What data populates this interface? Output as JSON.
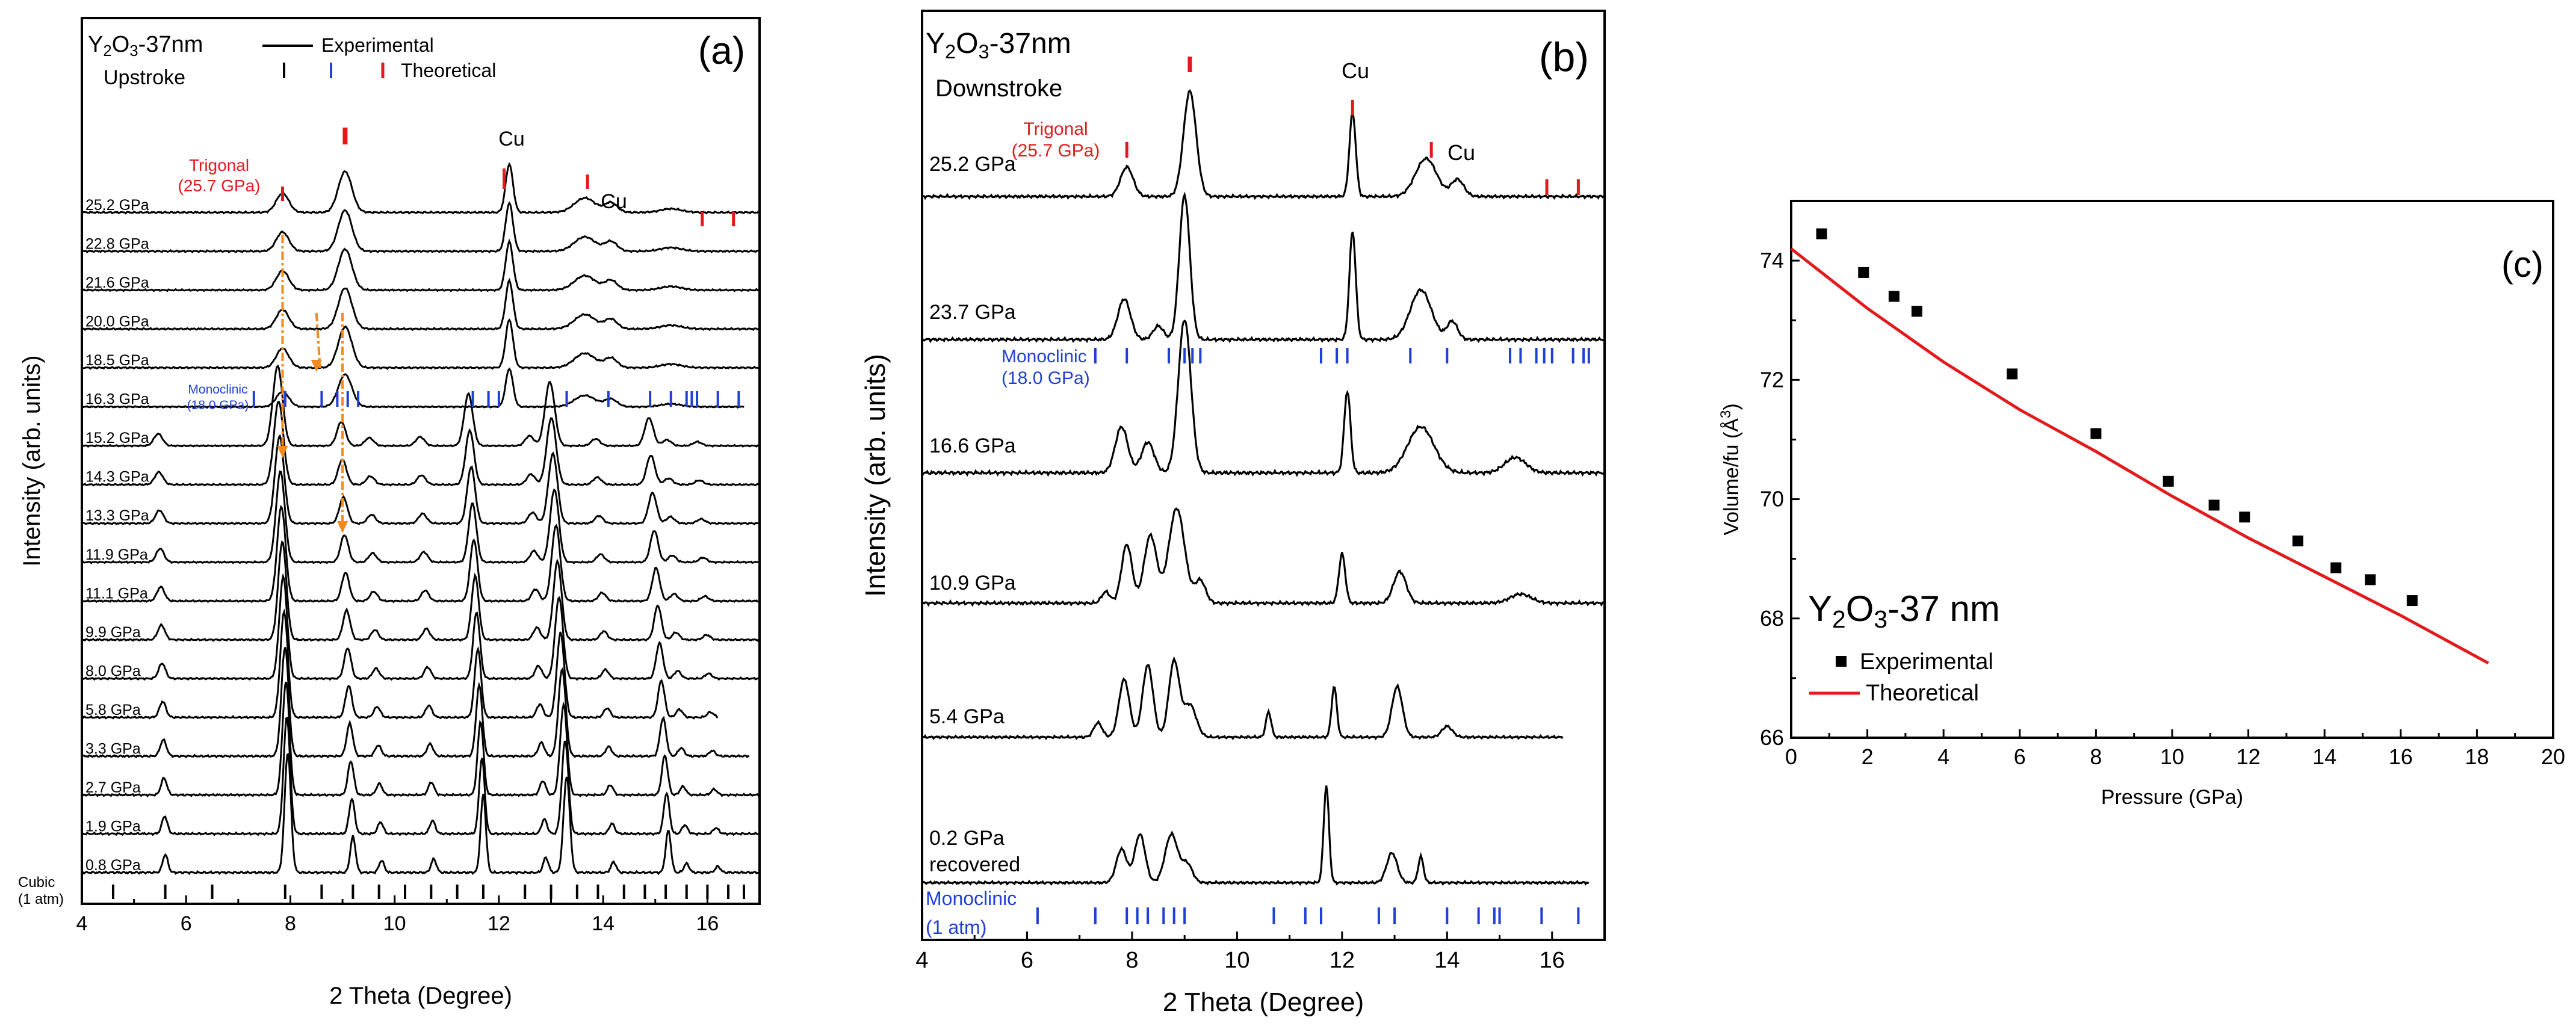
{
  "colors": {
    "black": "#000000",
    "red": "#e31a1c",
    "blue": "#1f3fd6",
    "orange": "#f28a1e"
  },
  "chart_data": [
    {
      "type": "line",
      "panel": "(a)",
      "sample_label": "Y2O3-37nm",
      "sample_parts": [
        "Y",
        "2",
        "O",
        "3",
        "-37nm"
      ],
      "mode": "Upstroke",
      "xlabel": "2 Theta (Degree)",
      "ylabel": "Intensity (arb. units)",
      "xlim": [
        4,
        17
      ],
      "xticks": [
        4,
        6,
        8,
        10,
        12,
        14,
        16
      ],
      "legend": {
        "experimental": "Experimental",
        "theoretical": "Theoretical"
      },
      "pressure_labels": [
        "25.2 GPa",
        "22.8 GPa",
        "21.6 GPa",
        "20.0 GPa",
        "18.5 GPa",
        "16.3 GPa",
        "15.2 GPa",
        "14.3 GPa",
        "13.3 GPa",
        "11.9 GPa",
        "11.1 GPa",
        "9.9 GPa",
        "8.0 GPa",
        "5.8 GPa",
        "3.3 GPa",
        "2.7 GPa",
        "1.9 GPa",
        "0.8 GPa"
      ],
      "trigonal_label": [
        "Trigonal",
        "(25.7 GPa)"
      ],
      "monoclinic_label": [
        "Monoclinic",
        "(18.0 GPa)"
      ],
      "cubic_label": [
        "Cubic",
        "(1 atm)"
      ],
      "cu_labels": [
        "Cu",
        "Cu"
      ],
      "cubic_ticks": [
        4.6,
        5.6,
        6.5,
        7.9,
        8.6,
        9.2,
        9.7,
        10.2,
        10.7,
        11.2,
        11.7,
        12.5,
        13.0,
        13.5,
        13.9,
        14.4,
        14.8,
        15.2,
        15.6,
        16.0,
        16.4,
        16.7
      ],
      "trigonal_ticks": [
        7.85,
        9.05,
        12.1,
        13.7,
        15.9,
        16.5
      ],
      "monoclinic_ticks": [
        7.3,
        7.9,
        8.6,
        8.9,
        9.1,
        9.3,
        11.5,
        11.8,
        12.0,
        13.3,
        14.1,
        14.9,
        15.3,
        15.6,
        15.7,
        15.8,
        16.2,
        16.6
      ]
    },
    {
      "type": "line",
      "panel": "(b)",
      "sample_label": "Y2O3-37nm",
      "sample_parts": [
        "Y",
        "2",
        "O",
        "3",
        "-37nm"
      ],
      "mode": "Downstroke",
      "xlabel": "2 Theta (Degree)",
      "ylabel": "Intensity (arb. units)",
      "xlim": [
        4,
        17
      ],
      "xticks": [
        4,
        6,
        8,
        10,
        12,
        14,
        16
      ],
      "pressure_labels": [
        "25.2 GPa",
        "23.7 GPa",
        "16.6 GPa",
        "10.9 GPa",
        "5.4 GPa",
        "0.2 GPa",
        "recovered"
      ],
      "trigonal_label": [
        "Trigonal",
        "(25.7 GPa)"
      ],
      "monoclinic_label": [
        "Monoclinic",
        "(18.0 GPa)"
      ],
      "monoclinic_1atm_label": [
        "Monoclinic",
        "(1 atm)"
      ],
      "cu_labels": [
        "Cu",
        "Cu"
      ],
      "trigonal_ticks": [
        7.9,
        9.1,
        12.2,
        13.7,
        15.9,
        16.5
      ],
      "monoclinic_ticks": [
        7.3,
        7.9,
        8.7,
        9.0,
        9.15,
        9.3,
        11.6,
        11.9,
        12.1,
        13.3,
        14.0,
        15.2,
        15.4,
        15.7,
        15.85,
        16.0,
        16.4,
        16.6,
        16.7
      ],
      "monoclinic_1atm_ticks": [
        6.2,
        7.3,
        7.9,
        8.1,
        8.3,
        8.6,
        8.8,
        9.0,
        10.7,
        11.3,
        11.6,
        12.7,
        13.0,
        14.0,
        14.6,
        14.9,
        15.0,
        15.8,
        16.5
      ]
    },
    {
      "type": "scatter",
      "panel": "(c)",
      "xlabel": "Pressure (GPa)",
      "ylabel": "Volume/fu  (Å",
      "ylabel_sup": "3",
      "ylabel_end": ")",
      "xlim": [
        0,
        20
      ],
      "ylim": [
        66,
        75
      ],
      "xticks": [
        0,
        2,
        4,
        6,
        8,
        10,
        12,
        14,
        16,
        18,
        20
      ],
      "yticks": [
        66,
        68,
        70,
        72,
        74
      ],
      "sample_label": "Y2O3-37 nm",
      "sample_parts": [
        "Y",
        "2",
        "O",
        "3",
        "-37 nm"
      ],
      "legend": {
        "experimental": "Experimental",
        "theoretical": "Theoretical"
      },
      "experimental": {
        "x": [
          0.8,
          1.9,
          2.7,
          3.3,
          5.8,
          8.0,
          9.9,
          11.1,
          11.9,
          13.3,
          14.3,
          15.2,
          16.3
        ],
        "y": [
          74.45,
          73.8,
          73.4,
          73.15,
          72.1,
          71.1,
          70.3,
          69.9,
          69.7,
          69.3,
          68.85,
          68.65,
          68.3
        ]
      },
      "theoretical": {
        "x": [
          0,
          2,
          4,
          6,
          8,
          10,
          12,
          14,
          16,
          18.3
        ],
        "y": [
          74.2,
          73.2,
          72.3,
          71.5,
          70.8,
          70.05,
          69.35,
          68.7,
          68.05,
          67.25
        ]
      }
    }
  ]
}
